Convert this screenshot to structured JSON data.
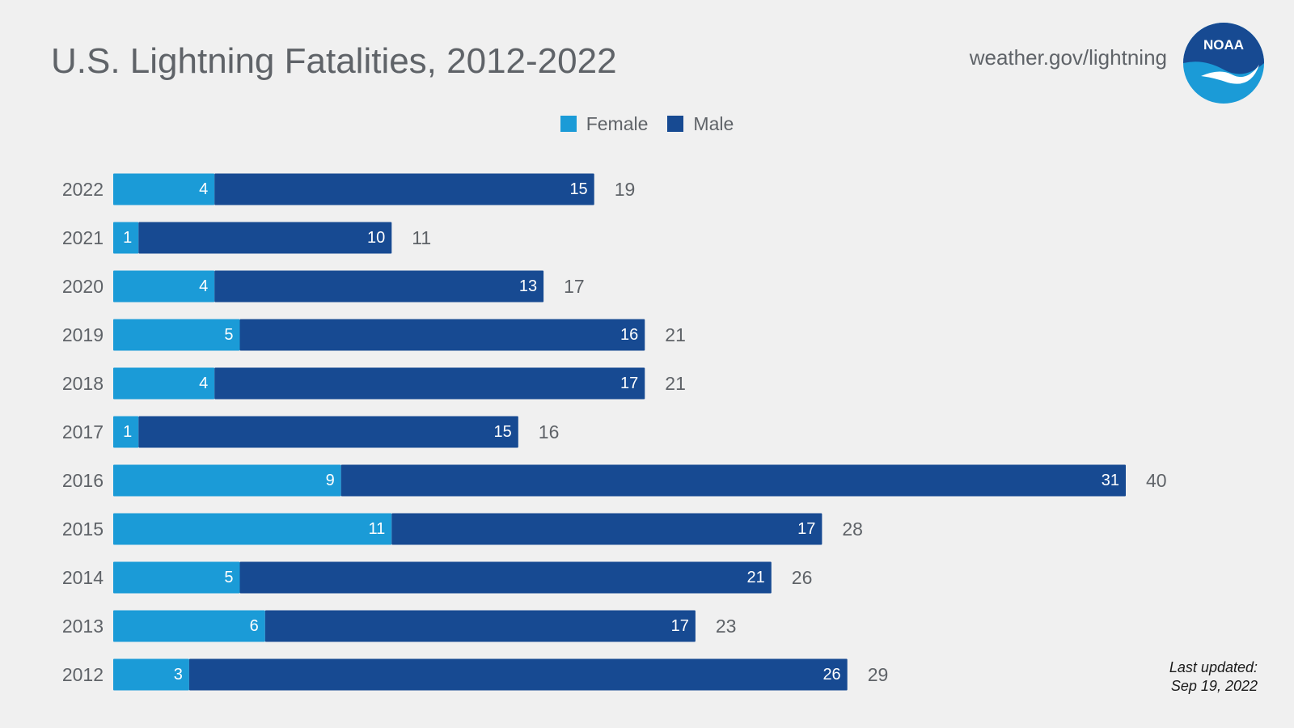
{
  "header": {
    "title": "U.S. Lightning Fatalities, 2012-2022",
    "site": "weather.gov/lightning",
    "logo_text": "NOAA"
  },
  "footer": {
    "updated_line1": "Last updated:",
    "updated_line2": "Sep 19, 2022"
  },
  "colors": {
    "female": "#1b9bd7",
    "male": "#174a92",
    "background": "#f0f0f0",
    "text": "#5f6368",
    "logo_blue": "#1b9bd7",
    "logo_dark": "#174a92"
  },
  "chart_data": {
    "type": "bar",
    "orientation": "horizontal",
    "stacked": true,
    "categories": [
      "2022",
      "2021",
      "2020",
      "2019",
      "2018",
      "2017",
      "2016",
      "2015",
      "2014",
      "2013",
      "2012"
    ],
    "series": [
      {
        "name": "Female",
        "values": [
          4,
          1,
          4,
          5,
          4,
          1,
          9,
          11,
          5,
          6,
          3
        ]
      },
      {
        "name": "Male",
        "values": [
          15,
          10,
          13,
          16,
          17,
          15,
          31,
          17,
          21,
          17,
          26
        ]
      }
    ],
    "totals": [
      19,
      11,
      17,
      21,
      21,
      16,
      40,
      28,
      26,
      23,
      29
    ],
    "title": "U.S. Lightning Fatalities, 2012-2022",
    "xlabel": "",
    "ylabel": "",
    "xlim": [
      0,
      40
    ],
    "grid": false,
    "legend": "top-center"
  }
}
